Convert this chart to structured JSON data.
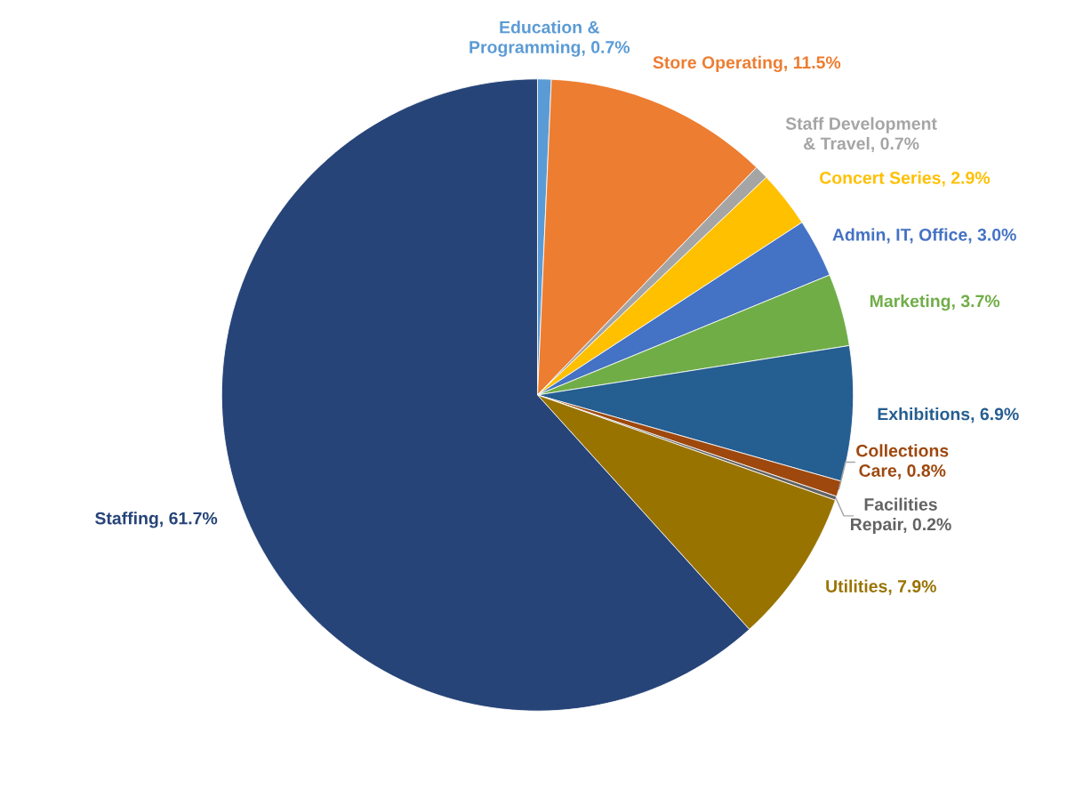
{
  "chart_data": {
    "type": "pie",
    "categories": [
      "Education & Programming",
      "Store Operating",
      "Staff Development & Travel",
      "Concert Series",
      "Admin, IT, Office",
      "Marketing",
      "Exhibitions",
      "Collections Care",
      "Facilities Repair",
      "Utilities",
      "Staffing"
    ],
    "values": [
      0.7,
      11.5,
      0.7,
      2.9,
      3.0,
      3.7,
      6.9,
      0.8,
      0.2,
      7.9,
      61.7
    ],
    "colors": [
      "#5b9bd5",
      "#ed7d31",
      "#a5a5a5",
      "#ffc000",
      "#4472c4",
      "#70ad47",
      "#255e91",
      "#9e480e",
      "#636363",
      "#997300",
      "#264478"
    ],
    "value_labels": [
      "0.7%",
      "11.5%",
      "0.7%",
      "2.9%",
      "3.0%",
      "3.7%",
      "6.9%",
      "0.8%",
      "0.2%",
      "7.9%",
      "61.7%"
    ]
  }
}
